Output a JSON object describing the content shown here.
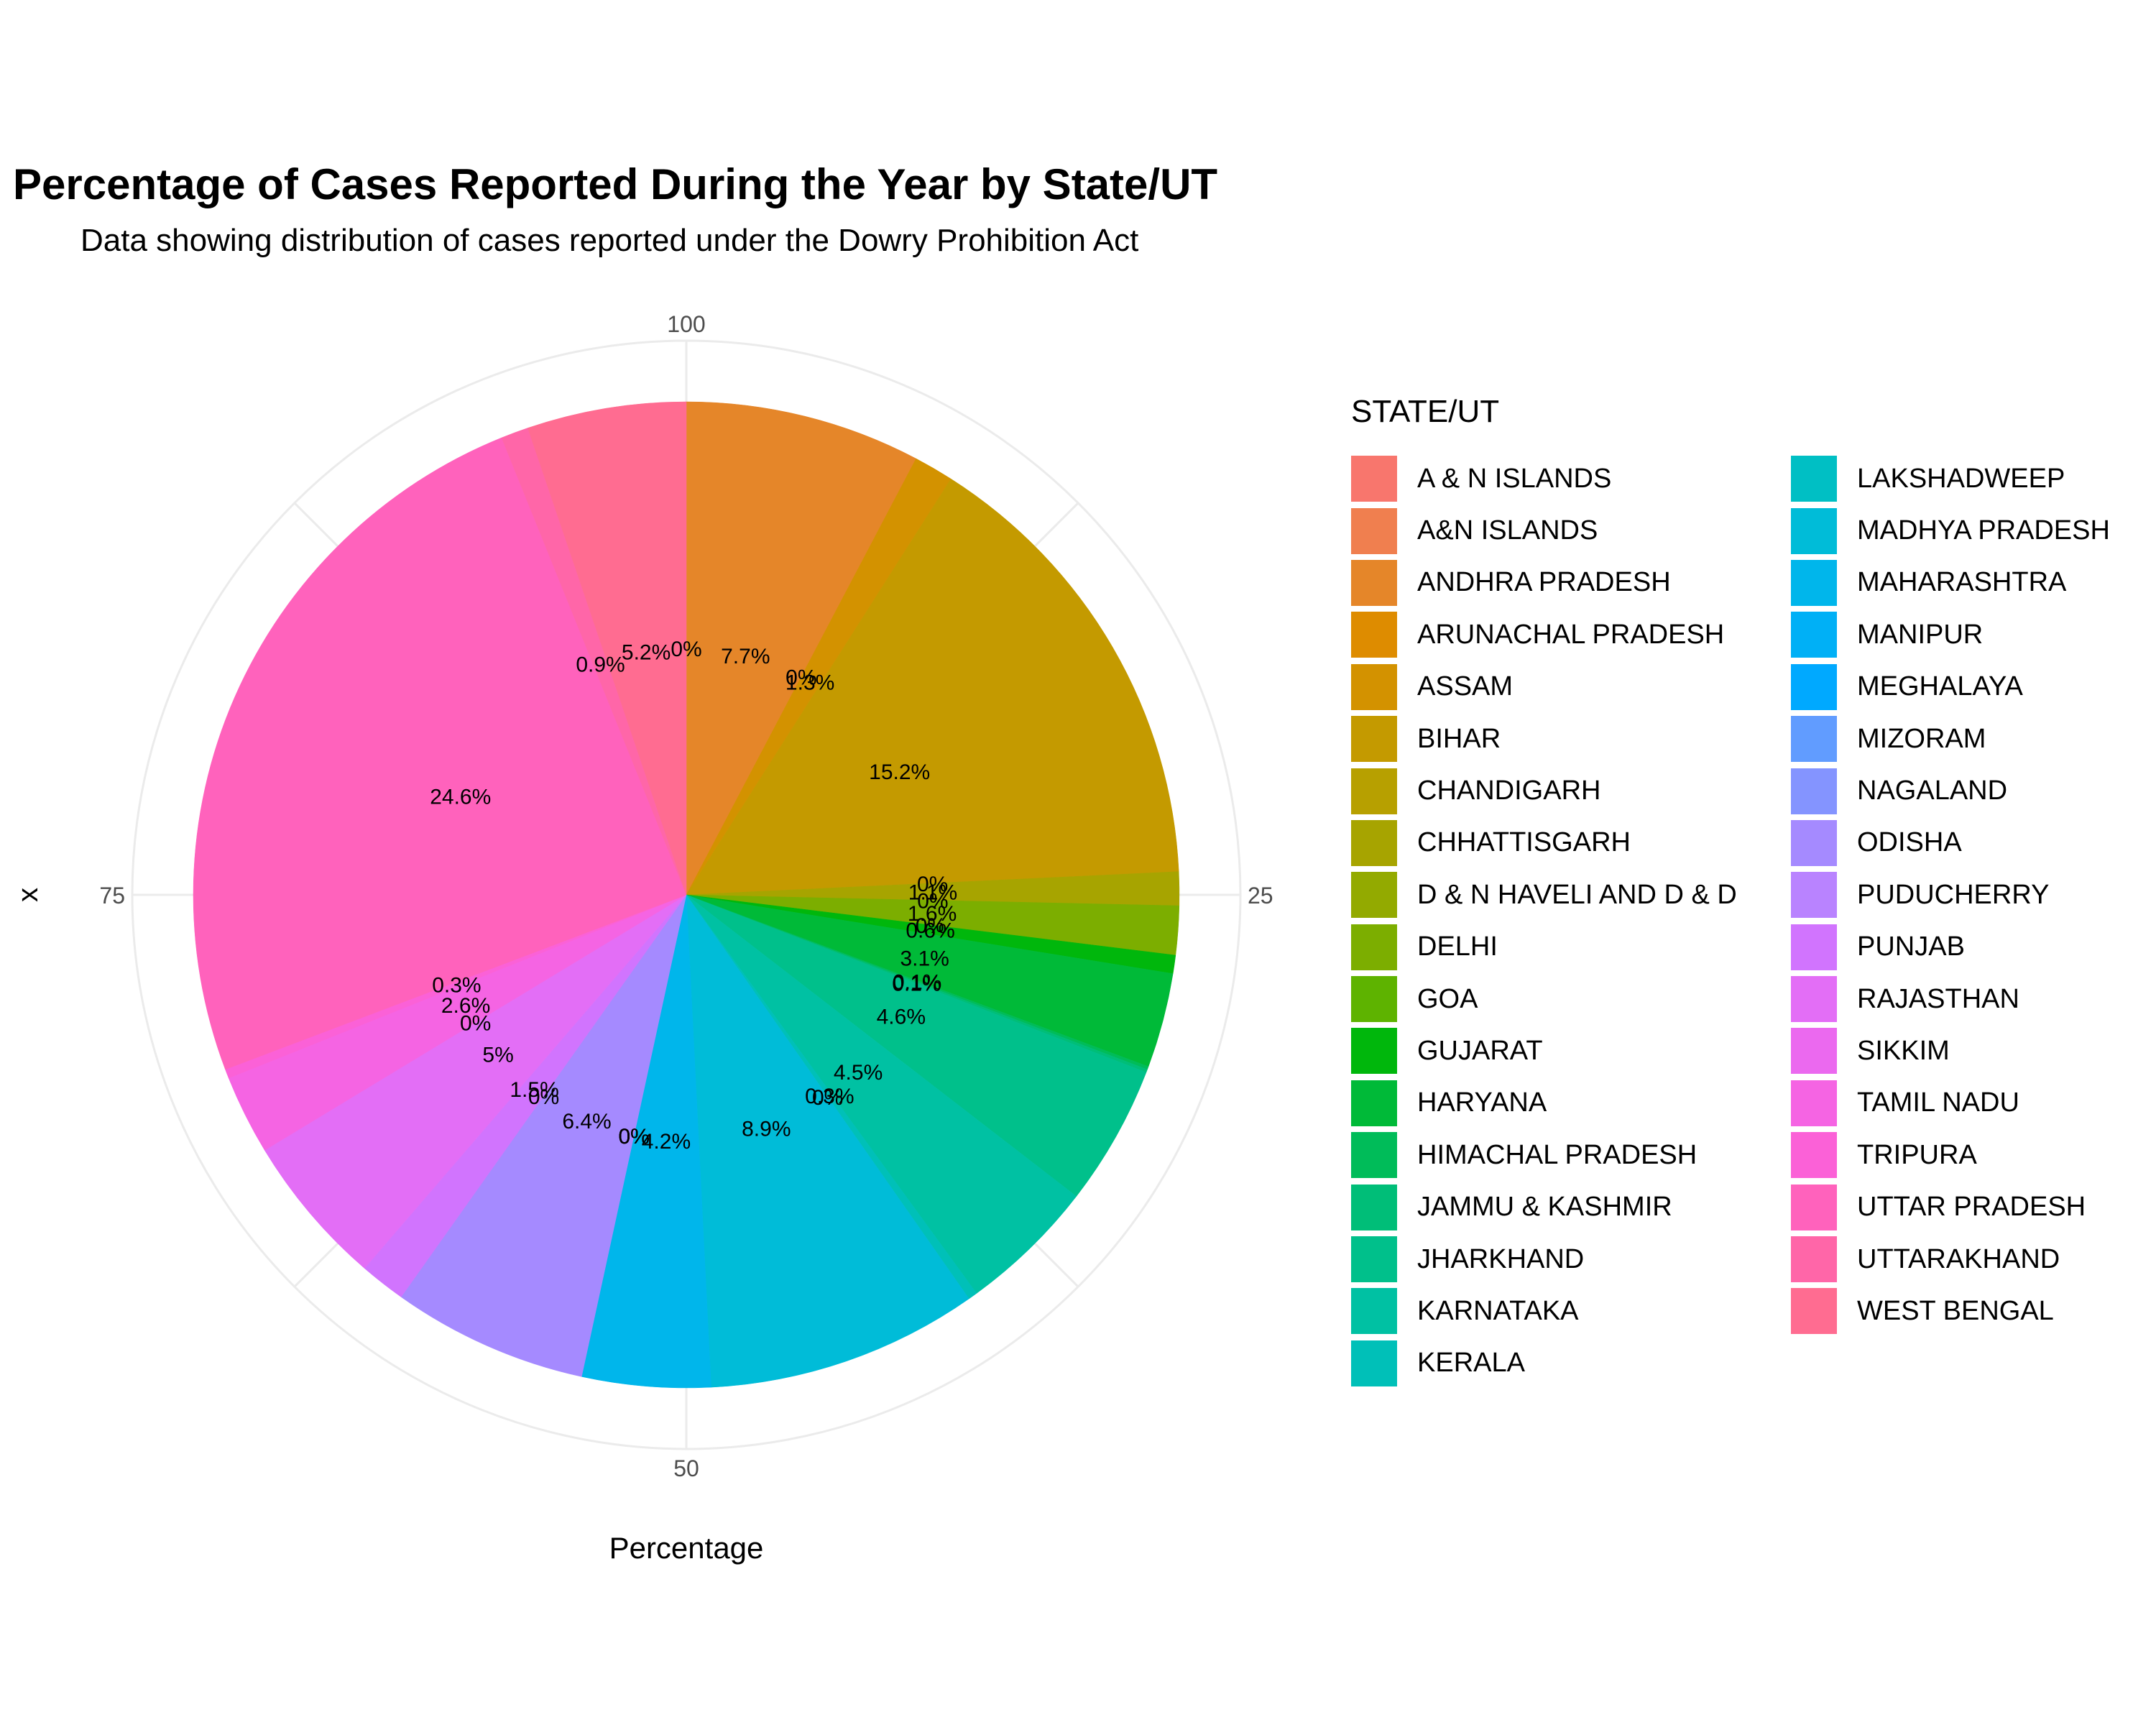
{
  "chart_data": {
    "type": "pie",
    "title": "Percentage of Cases Reported During the Year by State/UT",
    "subtitle": "Data showing distribution of cases reported under the Dowry Prohibition Act",
    "xlabel": "Percentage",
    "ylabel": "x",
    "axis_ticks": [
      "100",
      "25",
      "50",
      "75"
    ],
    "legend_title": "STATE/UT",
    "legend_placement": "right",
    "grid": true,
    "slices": [
      {
        "name": "A & N ISLANDS",
        "value": 0,
        "label": "0%",
        "color": "#F8766D"
      },
      {
        "name": "A&N ISLANDS",
        "value": 0,
        "label": "",
        "color": "#F07F4F"
      },
      {
        "name": "ANDHRA PRADESH",
        "value": 7.7,
        "label": "7.7%",
        "color": "#E58629"
      },
      {
        "name": "ARUNACHAL PRADESH",
        "value": 0,
        "label": "0%",
        "color": "#DE8C00"
      },
      {
        "name": "ASSAM",
        "value": 1.3,
        "label": "1.3%",
        "color": "#D39200"
      },
      {
        "name": "BIHAR",
        "value": 15.2,
        "label": "15.2%",
        "color": "#C49A00"
      },
      {
        "name": "CHANDIGARH",
        "value": 0,
        "label": "0%",
        "color": "#B7A000"
      },
      {
        "name": "CHHATTISGARH",
        "value": 1.1,
        "label": "1.1%",
        "color": "#A7A400"
      },
      {
        "name": "D & N HAVELI AND D & D",
        "value": 0,
        "label": "0%",
        "color": "#93AA00"
      },
      {
        "name": "DELHI",
        "value": 1.6,
        "label": "1.6%",
        "color": "#7CAE00"
      },
      {
        "name": "GOA",
        "value": 0,
        "label": "0%",
        "color": "#5EB300"
      },
      {
        "name": "GUJARAT",
        "value": 0.6,
        "label": "0.6%",
        "color": "#00B70C"
      },
      {
        "name": "HARYANA",
        "value": 3.1,
        "label": "3.1%",
        "color": "#00BA38"
      },
      {
        "name": "HIMACHAL PRADESH",
        "value": 0.1,
        "label": "0.1%",
        "color": "#00BC59"
      },
      {
        "name": "JAMMU & KASHMIR",
        "value": 0.1,
        "label": "0.1%",
        "color": "#00BE78"
      },
      {
        "name": "JHARKHAND",
        "value": 4.6,
        "label": "4.6%",
        "color": "#00C08B"
      },
      {
        "name": "KARNATAKA",
        "value": 4.5,
        "label": "4.5%",
        "color": "#00C1A3"
      },
      {
        "name": "KERALA",
        "value": 0.3,
        "label": "0.3%",
        "color": "#00C0B8"
      },
      {
        "name": "LAKSHADWEEP",
        "value": 0,
        "label": "0%",
        "color": "#00BFC4"
      },
      {
        "name": "MADHYA PRADESH",
        "value": 8.9,
        "label": "8.9%",
        "color": "#00BCD8"
      },
      {
        "name": "MAHARASHTRA",
        "value": 4.2,
        "label": "4.2%",
        "color": "#00B6EB"
      },
      {
        "name": "MANIPUR",
        "value": 0,
        "label": "0%",
        "color": "#00B0F6"
      },
      {
        "name": "MEGHALAYA",
        "value": 0,
        "label": "0%",
        "color": "#00A9FF"
      },
      {
        "name": "MIZORAM",
        "value": 0,
        "label": "0%",
        "color": "#619CFF"
      },
      {
        "name": "NAGALAND",
        "value": 0,
        "label": "0%",
        "color": "#8494FF"
      },
      {
        "name": "ODISHA",
        "value": 6.4,
        "label": "6.4%",
        "color": "#A58AFF"
      },
      {
        "name": "PUDUCHERRY",
        "value": 0,
        "label": "0%",
        "color": "#B983FF"
      },
      {
        "name": "PUNJAB",
        "value": 1.5,
        "label": "1.5%",
        "color": "#D174FE"
      },
      {
        "name": "RAJASTHAN",
        "value": 5,
        "label": "5%",
        "color": "#E36EF6"
      },
      {
        "name": "SIKKIM",
        "value": 0,
        "label": "0%",
        "color": "#EB69EF"
      },
      {
        "name": "TAMIL NADU",
        "value": 2.6,
        "label": "2.6%",
        "color": "#F564E3"
      },
      {
        "name": "TRIPURA",
        "value": 0.3,
        "label": "0.3%",
        "color": "#FB61D7"
      },
      {
        "name": "UTTAR PRADESH",
        "value": 24.6,
        "label": "24.6%",
        "color": "#FF62BC"
      },
      {
        "name": "UTTARAKHAND",
        "value": 0.9,
        "label": "0.9%",
        "color": "#FF66A8"
      },
      {
        "name": "WEST BENGAL",
        "value": 5.2,
        "label": "5.2%",
        "color": "#FF6C91"
      }
    ]
  }
}
